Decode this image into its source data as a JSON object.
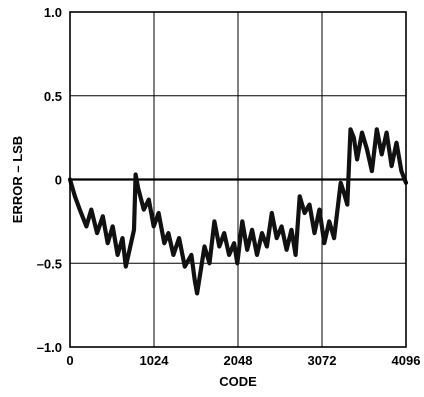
{
  "chart_data": {
    "type": "line",
    "title": "",
    "xlabel": "CODE",
    "ylabel": "ERROR – LSB",
    "xlim": [
      0,
      4096
    ],
    "ylim": [
      -1.0,
      1.0
    ],
    "x_ticks": [
      0,
      1024,
      2048,
      3072,
      4096
    ],
    "x_tick_labels": [
      "0",
      "1024",
      "2048",
      "3072",
      "4096"
    ],
    "y_ticks": [
      -1.0,
      -0.5,
      0,
      0.5,
      1.0
    ],
    "y_tick_labels": [
      "–1.0",
      "–0.5",
      "0",
      "0.5",
      "1.0"
    ],
    "grid": true,
    "reference_line_y": 0,
    "series": [
      {
        "x": [
          0,
          60,
          120,
          200,
          260,
          330,
          400,
          460,
          520,
          580,
          640,
          680,
          780,
          800,
          830,
          900,
          960,
          1020,
          1080,
          1150,
          1200,
          1260,
          1330,
          1400,
          1480,
          1520,
          1550,
          1640,
          1700,
          1760,
          1820,
          1880,
          1940,
          2000,
          2040,
          2100,
          2160,
          2220,
          2280,
          2340,
          2400,
          2460,
          2520,
          2580,
          2640,
          2700,
          2750,
          2800,
          2860,
          2920,
          2980,
          3040,
          3100,
          3160,
          3220,
          3300,
          3340,
          3380,
          3420,
          3460,
          3500,
          3560,
          3620,
          3680,
          3740,
          3800,
          3860,
          3920,
          3980,
          4040,
          4096
        ],
        "y": [
          0.0,
          -0.1,
          -0.18,
          -0.28,
          -0.18,
          -0.32,
          -0.22,
          -0.38,
          -0.28,
          -0.45,
          -0.35,
          -0.52,
          -0.3,
          0.03,
          -0.05,
          -0.18,
          -0.12,
          -0.28,
          -0.2,
          -0.38,
          -0.32,
          -0.45,
          -0.35,
          -0.52,
          -0.45,
          -0.6,
          -0.68,
          -0.4,
          -0.5,
          -0.25,
          -0.4,
          -0.32,
          -0.45,
          -0.38,
          -0.5,
          -0.25,
          -0.42,
          -0.3,
          -0.45,
          -0.32,
          -0.4,
          -0.2,
          -0.35,
          -0.28,
          -0.42,
          -0.3,
          -0.45,
          -0.1,
          -0.2,
          -0.15,
          -0.32,
          -0.18,
          -0.38,
          -0.25,
          -0.35,
          -0.02,
          -0.08,
          -0.15,
          0.3,
          0.25,
          0.12,
          0.28,
          0.18,
          0.05,
          0.3,
          0.15,
          0.28,
          0.08,
          0.22,
          0.05,
          -0.02
        ]
      }
    ]
  }
}
